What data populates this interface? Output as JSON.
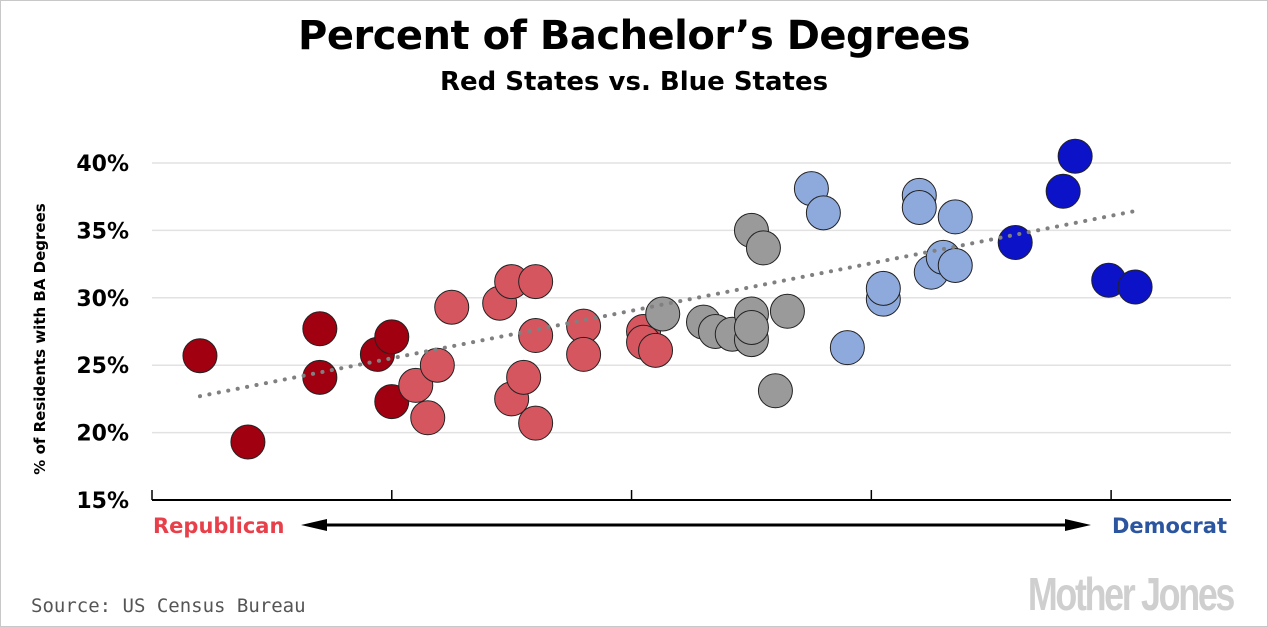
{
  "chart_data": {
    "type": "scatter",
    "title": "Percent of Bachelor’s Degrees",
    "subtitle": "Red States vs. Blue States",
    "ylabel": "% of Residents with BA Degrees",
    "xlabel_left": "Republican",
    "xlabel_right": "Democrat",
    "ylim": [
      15,
      40
    ],
    "xlim": [
      0,
      4.5
    ],
    "yticks": [
      "15%",
      "20%",
      "25%",
      "30%",
      "35%",
      "40%"
    ],
    "ytick_values": [
      15,
      20,
      25,
      30,
      35,
      40
    ],
    "xtick_values": [
      1,
      2,
      3,
      4
    ],
    "grid": true,
    "source": "Source: US Census Bureau",
    "logo": "Mother Jones",
    "colors": {
      "dark_red": "#a00010",
      "light_red": "#d65660",
      "gray": "#9a9a9a",
      "light_blue": "#8eaadd",
      "dark_blue": "#0c12c8",
      "republican_text": "#e8404a",
      "democrat_text": "#2c55a0",
      "trend": "#808080"
    },
    "series": [
      {
        "name": "dark_red",
        "x": [
          0.2,
          0.4,
          0.7,
          0.7,
          0.94,
          1.0,
          1.0
        ],
        "y": [
          25.7,
          19.3,
          27.7,
          24.1,
          25.8,
          27.1,
          22.3
        ]
      },
      {
        "name": "light_red",
        "x": [
          1.1,
          1.15,
          1.19,
          1.25,
          1.45,
          1.5,
          1.5,
          1.55,
          1.6,
          1.6,
          1.6,
          1.8,
          1.8,
          2.05,
          2.05,
          2.1
        ],
        "y": [
          23.5,
          21.1,
          25.0,
          29.3,
          29.6,
          31.2,
          22.5,
          24.1,
          27.2,
          31.2,
          20.7,
          27.9,
          25.8,
          27.5,
          26.7,
          26.1
        ]
      },
      {
        "name": "gray",
        "x": [
          2.13,
          2.3,
          2.35,
          2.42,
          2.5,
          2.5,
          2.5,
          2.5,
          2.55,
          2.6,
          2.65
        ],
        "y": [
          28.8,
          28.2,
          27.5,
          27.3,
          35.0,
          28.8,
          26.9,
          27.8,
          33.7,
          23.1,
          29.0
        ]
      },
      {
        "name": "light_blue",
        "x": [
          2.75,
          2.8,
          2.9,
          3.05,
          3.05,
          3.2,
          3.2,
          3.25,
          3.3,
          3.35,
          3.35
        ],
        "y": [
          38.1,
          36.3,
          26.3,
          29.9,
          30.7,
          37.6,
          36.7,
          31.9,
          33.0,
          32.4,
          36.0
        ]
      },
      {
        "name": "dark_blue",
        "x": [
          3.6,
          3.8,
          3.85,
          3.99,
          4.1
        ],
        "y": [
          34.1,
          37.9,
          40.5,
          31.3,
          30.8
        ]
      }
    ],
    "trendline": {
      "x": [
        0.2,
        4.09
      ],
      "y": [
        22.7,
        36.4
      ]
    }
  }
}
